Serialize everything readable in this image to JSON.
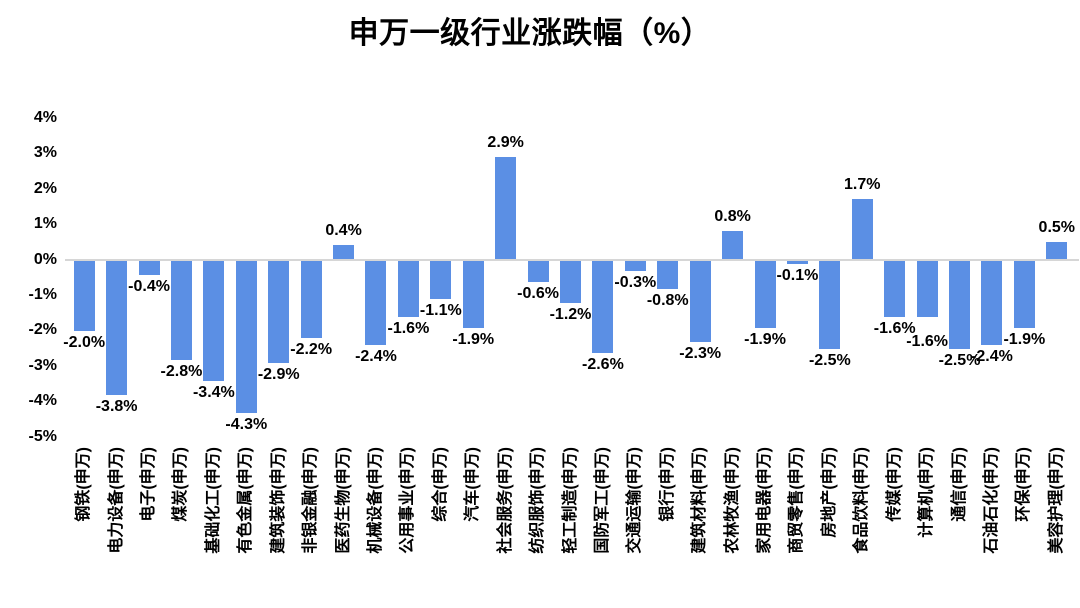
{
  "title": "申万一级行业涨跌幅（%）",
  "colors": {
    "bar": "#5b8fe4",
    "axis_line": "#d6d6d6",
    "text": "#000000",
    "background": "#ffffff"
  },
  "chart_data": {
    "type": "bar",
    "title": "申万一级行业涨跌幅（%）",
    "xlabel": "",
    "ylabel": "",
    "ylim": [
      -5,
      4
    ],
    "y_ticks": [
      "4%",
      "3%",
      "2%",
      "1%",
      "0%",
      "-1%",
      "-2%",
      "-3%",
      "-4%",
      "-5%"
    ],
    "grid": false,
    "legend": false,
    "data_label_position": "outside-end",
    "categories": [
      "钢铁(申万)",
      "电力设备(申万)",
      "电子(申万)",
      "煤炭(申万)",
      "基础化工(申万)",
      "有色金属(申万)",
      "建筑装饰(申万)",
      "非银金融(申万)",
      "医药生物(申万)",
      "机械设备(申万)",
      "公用事业(申万)",
      "综合(申万)",
      "汽车(申万)",
      "社会服务(申万)",
      "纺织服饰(申万)",
      "轻工制造(申万)",
      "国防军工(申万)",
      "交通运输(申万)",
      "银行(申万)",
      "建筑材料(申万)",
      "农林牧渔(申万)",
      "家用电器(申万)",
      "商贸零售(申万)",
      "房地产(申万)",
      "食品饮料(申万)",
      "传媒(申万)",
      "计算机(申万)",
      "通信(申万)",
      "石油石化(申万)",
      "环保(申万)",
      "美容护理(申万)"
    ],
    "values": [
      -2.0,
      -3.8,
      -0.4,
      -2.8,
      -3.4,
      -4.3,
      -2.9,
      -2.2,
      0.4,
      -2.4,
      -1.6,
      -1.1,
      -1.9,
      2.9,
      -0.6,
      -1.2,
      -2.6,
      -0.3,
      -0.8,
      -2.3,
      0.8,
      -1.9,
      -0.1,
      -2.5,
      1.7,
      -1.6,
      -1.6,
      -2.5,
      -2.4,
      -1.9,
      0.5
    ],
    "value_labels": [
      "-2.0%",
      "-3.8%",
      "-0.4%",
      "-2.8%",
      "-3.4%",
      "-4.3%",
      "-2.9%",
      "-2.2%",
      "0.4%",
      "-2.4%",
      "-1.6%",
      "-1.1%",
      "-1.9%",
      "2.9%",
      "-0.6%",
      "-1.2%",
      "-2.6%",
      "-0.3%",
      "-0.8%",
      "-2.3%",
      "0.8%",
      "-1.9%",
      "-0.1%",
      "-2.5%",
      "1.7%",
      "-1.6%",
      "-1.6%",
      "-2.5%",
      "-2.4%",
      "-1.9%",
      "0.5%"
    ]
  }
}
